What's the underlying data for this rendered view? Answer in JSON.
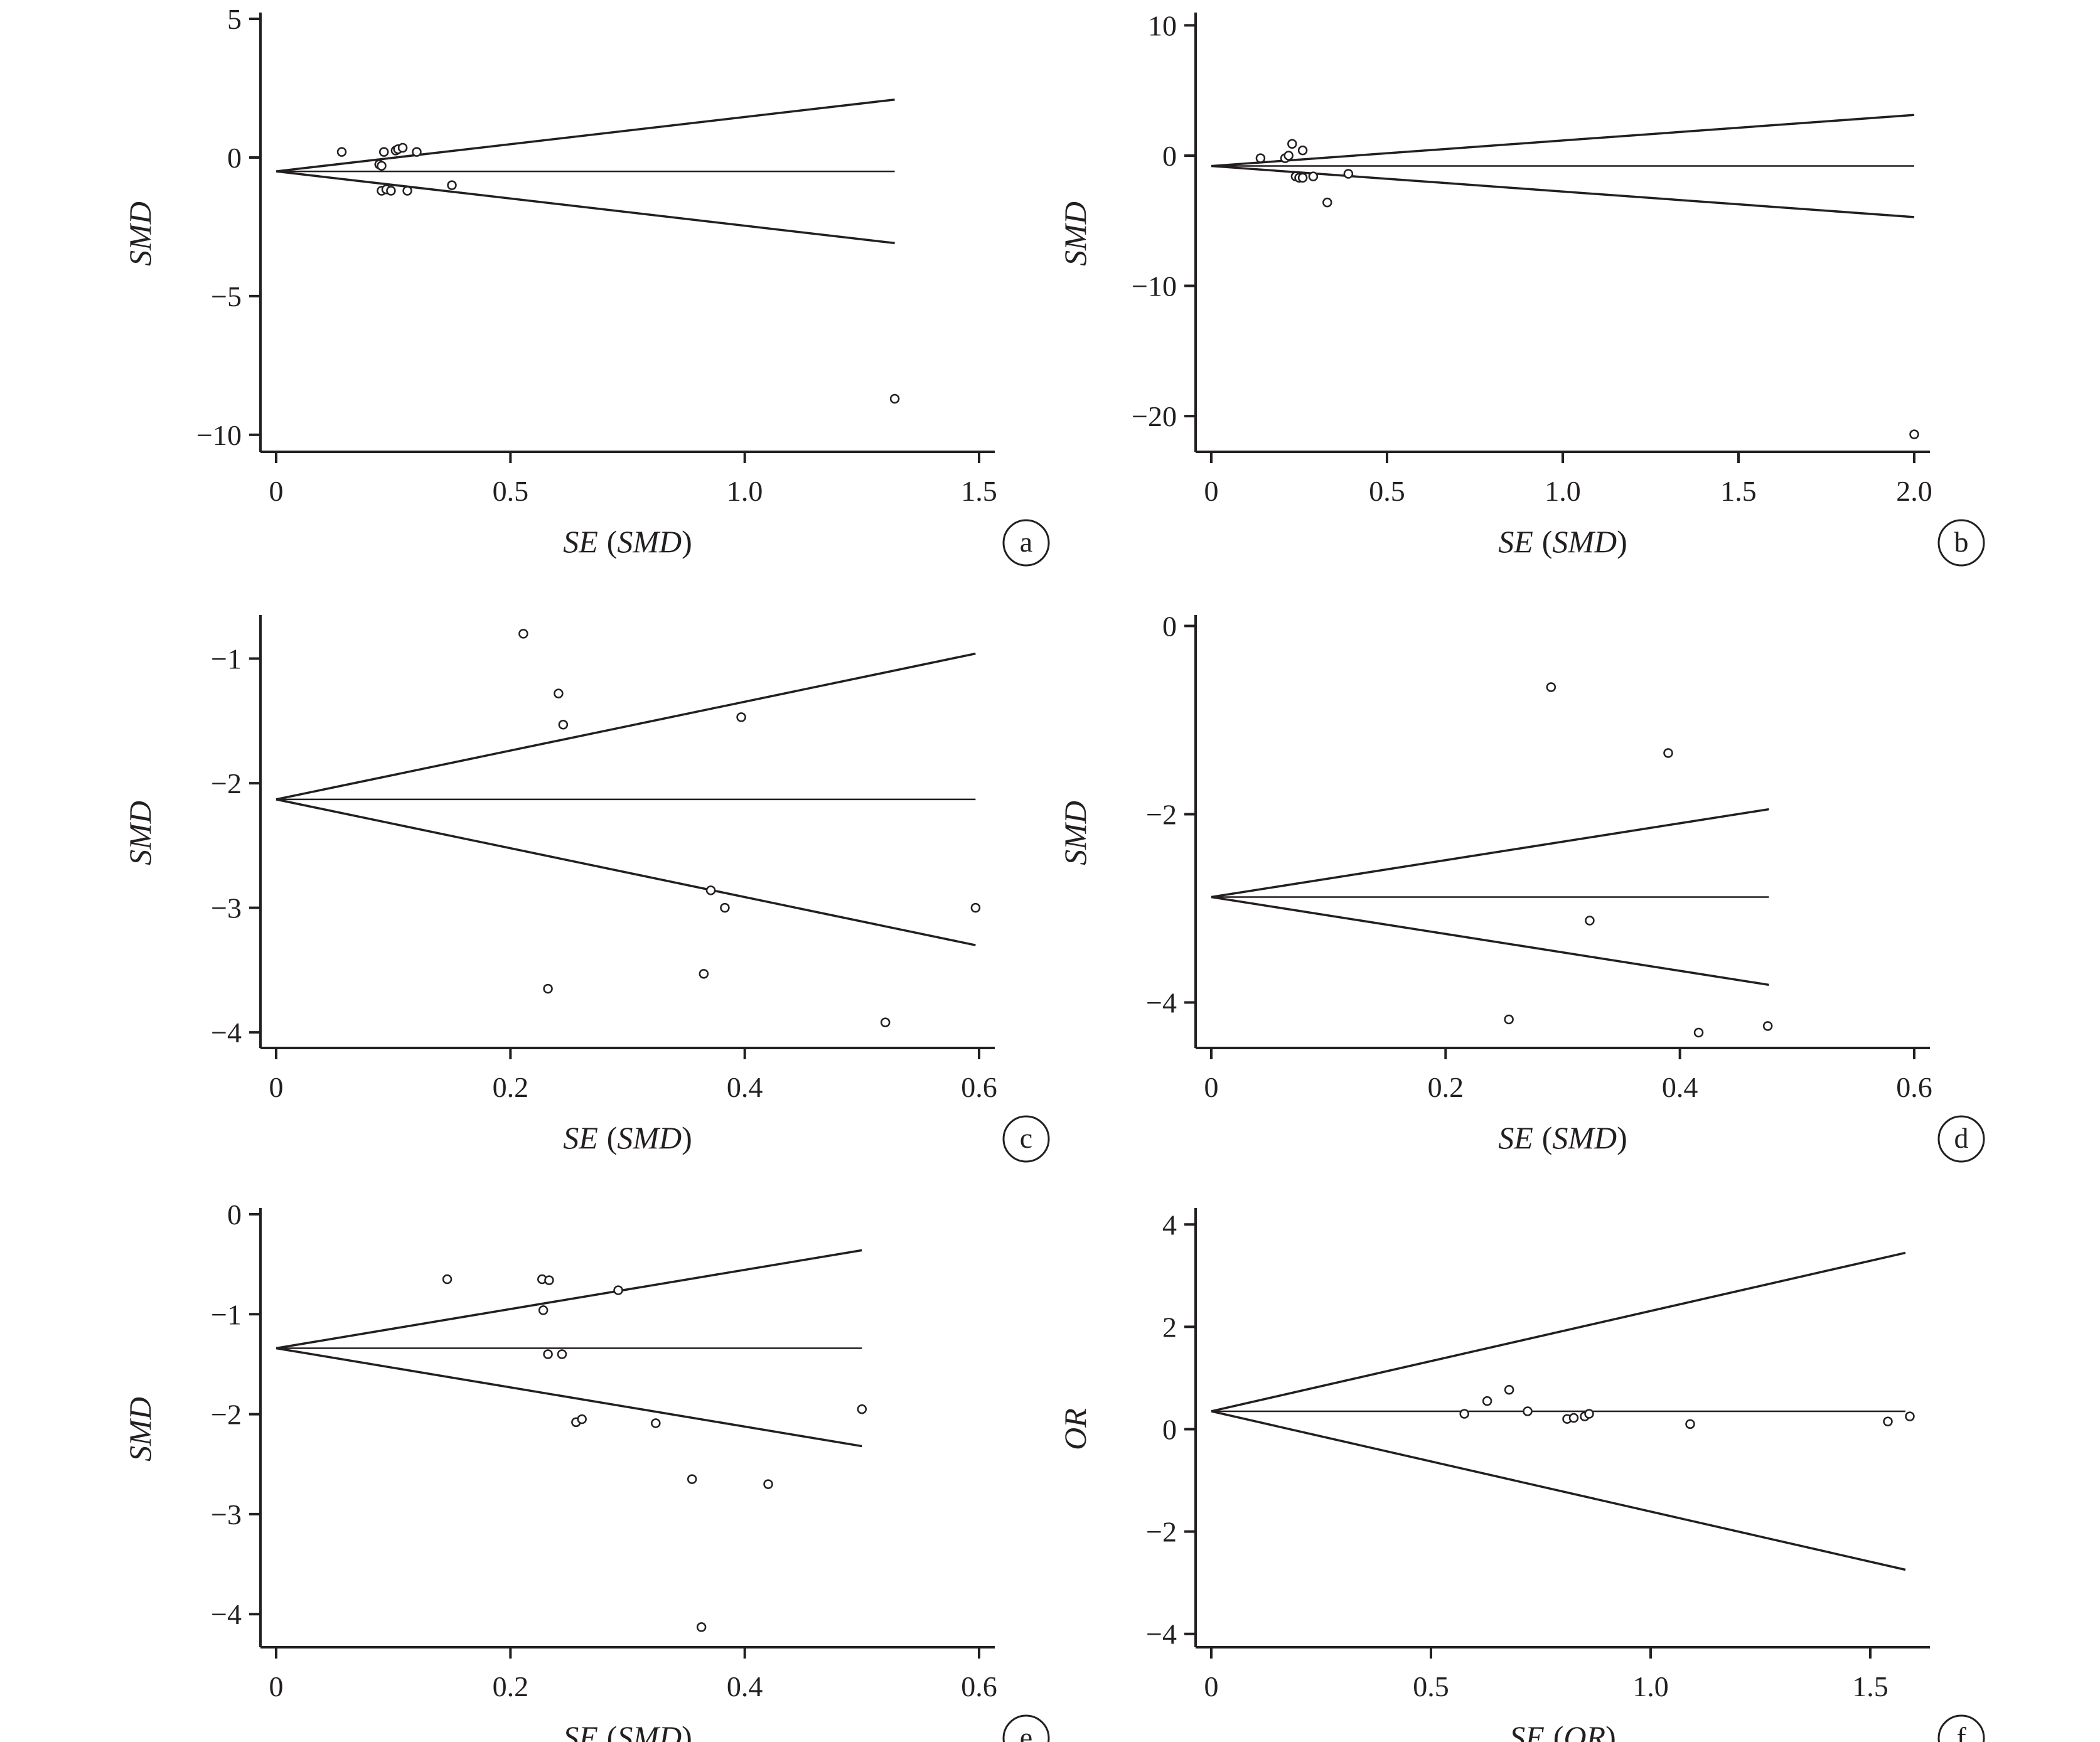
{
  "chart_data": [
    {
      "panel": "a",
      "type": "scatter",
      "xlabel": "SE (SMD)",
      "xlabel_parts": [
        "SE",
        "(",
        "SMD",
        ")"
      ],
      "ylabel": "SMD",
      "xlim": [
        0,
        1.5
      ],
      "ylim": [
        -10.5,
        5
      ],
      "xticks": [
        0,
        0.5,
        1.0,
        1.5
      ],
      "xtick_labels": [
        "0",
        "0.5",
        "1.0",
        "1.5"
      ],
      "yticks": [
        5,
        0,
        -5,
        -10
      ],
      "ytick_labels": [
        "5",
        "0",
        "−5",
        "−10"
      ],
      "pooled_estimate": -0.5,
      "funnel_se_max": 1.32,
      "points": [
        {
          "x": 0.14,
          "y": 0.2
        },
        {
          "x": 0.22,
          "y": -0.25
        },
        {
          "x": 0.225,
          "y": -0.3
        },
        {
          "x": 0.23,
          "y": 0.2
        },
        {
          "x": 0.225,
          "y": -1.2
        },
        {
          "x": 0.235,
          "y": -1.15
        },
        {
          "x": 0.245,
          "y": -1.2
        },
        {
          "x": 0.255,
          "y": 0.25
        },
        {
          "x": 0.26,
          "y": 0.3
        },
        {
          "x": 0.27,
          "y": 0.35
        },
        {
          "x": 0.28,
          "y": -1.2
        },
        {
          "x": 0.3,
          "y": 0.2
        },
        {
          "x": 0.375,
          "y": -1.0
        },
        {
          "x": 1.32,
          "y": -8.7
        }
      ]
    },
    {
      "panel": "b",
      "type": "scatter",
      "xlabel": "SE (SMD)",
      "xlabel_parts": [
        "SE",
        "(",
        "SMD",
        ")"
      ],
      "ylabel": "SMD",
      "xlim": [
        0,
        2.0
      ],
      "ylim": [
        -22.5,
        10.5
      ],
      "xticks": [
        0,
        0.5,
        1.0,
        1.5,
        2.0
      ],
      "xtick_labels": [
        "0",
        "0.5",
        "1.0",
        "1.5",
        "2.0"
      ],
      "yticks": [
        10,
        0,
        -10,
        -20
      ],
      "ytick_labels": [
        "10",
        "0",
        "−10",
        "−20"
      ],
      "pooled_estimate": -0.8,
      "funnel_se_max": 2.0,
      "points": [
        {
          "x": 0.14,
          "y": -0.2
        },
        {
          "x": 0.21,
          "y": -0.2
        },
        {
          "x": 0.22,
          "y": 0.0
        },
        {
          "x": 0.23,
          "y": 0.9
        },
        {
          "x": 0.24,
          "y": -1.6
        },
        {
          "x": 0.25,
          "y": -1.7
        },
        {
          "x": 0.26,
          "y": -1.7
        },
        {
          "x": 0.26,
          "y": 0.4
        },
        {
          "x": 0.29,
          "y": -1.6
        },
        {
          "x": 0.33,
          "y": -3.6
        },
        {
          "x": 0.39,
          "y": -1.4
        },
        {
          "x": 2.0,
          "y": -21.4
        }
      ]
    },
    {
      "panel": "c",
      "type": "scatter",
      "xlabel": "SE (SMD)",
      "xlabel_parts": [
        "SE",
        "(",
        "SMD",
        ")"
      ],
      "ylabel": "SMD",
      "xlim": [
        0,
        0.6
      ],
      "ylim": [
        -4.1,
        -0.7
      ],
      "xticks": [
        0,
        0.2,
        0.4,
        0.6
      ],
      "xtick_labels": [
        "0",
        "0.2",
        "0.4",
        "0.6"
      ],
      "yticks": [
        -1,
        -2,
        -3,
        -4
      ],
      "ytick_labels": [
        "−1",
        "−2",
        "−3",
        "−4"
      ],
      "pooled_estimate": -2.13,
      "funnel_se_max": 0.597,
      "points": [
        {
          "x": 0.211,
          "y": -0.8
        },
        {
          "x": 0.241,
          "y": -1.28
        },
        {
          "x": 0.245,
          "y": -1.53
        },
        {
          "x": 0.397,
          "y": -1.47
        },
        {
          "x": 0.371,
          "y": -2.86
        },
        {
          "x": 0.383,
          "y": -3.0
        },
        {
          "x": 0.597,
          "y": -3.0
        },
        {
          "x": 0.232,
          "y": -3.65
        },
        {
          "x": 0.365,
          "y": -3.53
        },
        {
          "x": 0.52,
          "y": -3.92
        }
      ]
    },
    {
      "panel": "d",
      "type": "scatter",
      "xlabel": "SE (SMD)",
      "xlabel_parts": [
        "SE",
        "(",
        "SMD",
        ")"
      ],
      "ylabel": "SMD",
      "xlim": [
        0,
        0.6
      ],
      "ylim": [
        -4.45,
        0.05
      ],
      "xticks": [
        0,
        0.2,
        0.4,
        0.6
      ],
      "xtick_labels": [
        "0",
        "0.2",
        "0.4",
        "0.6"
      ],
      "yticks": [
        0,
        -2,
        -4
      ],
      "ytick_labels": [
        "0",
        "−2",
        "−4"
      ],
      "pooled_estimate": -2.88,
      "funnel_se_max": 0.476,
      "points": [
        {
          "x": 0.29,
          "y": -0.65
        },
        {
          "x": 0.39,
          "y": -1.35
        },
        {
          "x": 0.323,
          "y": -3.13
        },
        {
          "x": 0.254,
          "y": -4.18
        },
        {
          "x": 0.416,
          "y": -4.32
        },
        {
          "x": 0.475,
          "y": -4.25
        }
      ]
    },
    {
      "panel": "e",
      "type": "scatter",
      "xlabel": "SE (SMD)",
      "xlabel_parts": [
        "SE",
        "(",
        "SMD",
        ")"
      ],
      "ylabel": "SMD",
      "xlim": [
        0,
        0.6
      ],
      "ylim": [
        -4.3,
        0
      ],
      "xticks": [
        0,
        0.2,
        0.4,
        0.6
      ],
      "xtick_labels": [
        "0",
        "0.2",
        "0.4",
        "0.6"
      ],
      "yticks": [
        0,
        -1,
        -2,
        -3,
        -4
      ],
      "ytick_labels": [
        "0",
        "−1",
        "−2",
        "−3",
        "−4"
      ],
      "pooled_estimate": -1.34,
      "funnel_se_max": 0.5,
      "points": [
        {
          "x": 0.146,
          "y": -0.65
        },
        {
          "x": 0.227,
          "y": -0.65
        },
        {
          "x": 0.233,
          "y": -0.66
        },
        {
          "x": 0.292,
          "y": -0.76
        },
        {
          "x": 0.228,
          "y": -0.96
        },
        {
          "x": 0.232,
          "y": -1.4
        },
        {
          "x": 0.244,
          "y": -1.4
        },
        {
          "x": 0.256,
          "y": -2.08
        },
        {
          "x": 0.261,
          "y": -2.05
        },
        {
          "x": 0.324,
          "y": -2.09
        },
        {
          "x": 0.355,
          "y": -2.65
        },
        {
          "x": 0.42,
          "y": -2.7
        },
        {
          "x": 0.5,
          "y": -1.95
        },
        {
          "x": 0.363,
          "y": -4.13
        }
      ]
    },
    {
      "panel": "f",
      "type": "scatter",
      "xlabel": "SE (OR)",
      "xlabel_parts": [
        "SE",
        "(",
        "OR",
        ")"
      ],
      "ylabel": "OR",
      "xlim": [
        0,
        1.6
      ],
      "ylim": [
        -4.2,
        4.2
      ],
      "xticks": [
        0,
        0.5,
        1.0,
        1.5
      ],
      "xtick_labels": [
        "0",
        "0.5",
        "1.0",
        "1.5"
      ],
      "yticks": [
        4,
        2,
        0,
        -2,
        -4
      ],
      "ytick_labels": [
        "4",
        "2",
        "0",
        "−2",
        "−4"
      ],
      "pooled_estimate": 0.35,
      "funnel_se_max": 1.58,
      "points": [
        {
          "x": 0.576,
          "y": 0.3
        },
        {
          "x": 0.628,
          "y": 0.55
        },
        {
          "x": 0.678,
          "y": 0.77
        },
        {
          "x": 0.72,
          "y": 0.35
        },
        {
          "x": 0.81,
          "y": 0.2
        },
        {
          "x": 0.825,
          "y": 0.22
        },
        {
          "x": 0.85,
          "y": 0.25
        },
        {
          "x": 0.86,
          "y": 0.3
        },
        {
          "x": 1.09,
          "y": 0.1
        },
        {
          "x": 1.54,
          "y": 0.15
        },
        {
          "x": 1.59,
          "y": 0.25
        }
      ]
    }
  ]
}
